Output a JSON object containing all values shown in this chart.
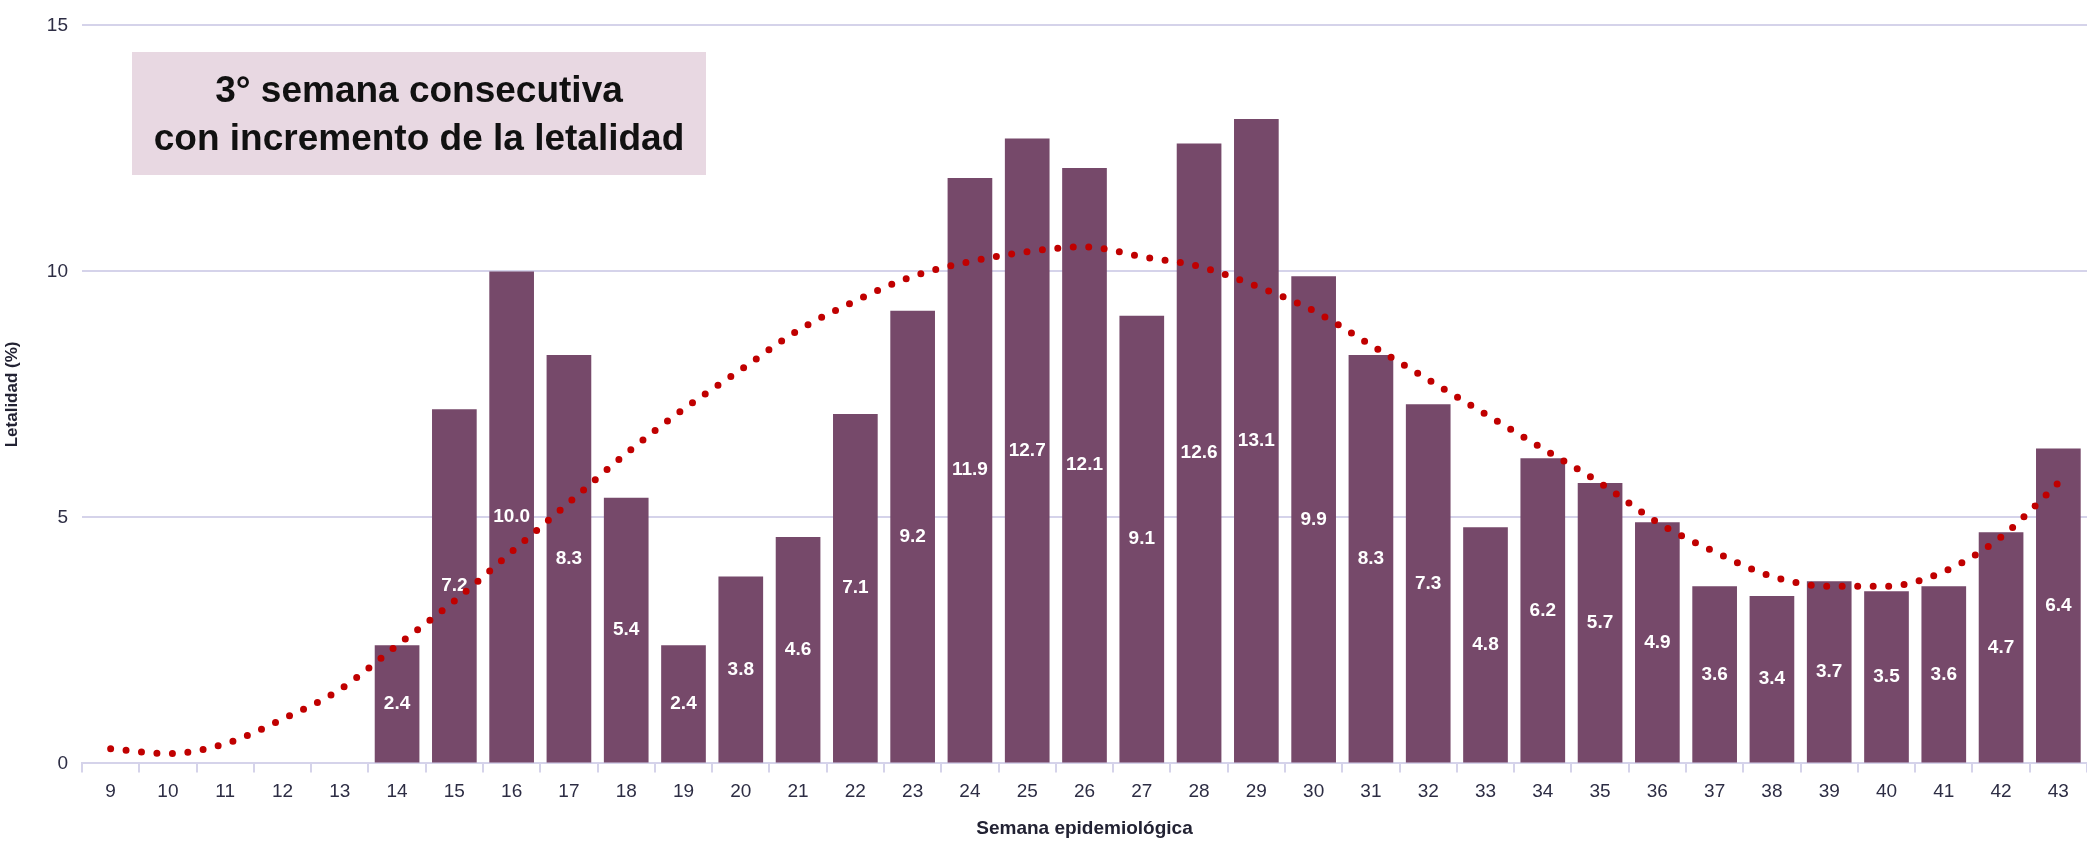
{
  "chart_data": {
    "type": "bar",
    "xlabel": "Semana epidemiológica",
    "ylabel": "Letalidad (%)",
    "annotations": [
      "3° semana consecutiva\ncon incremento de la letalidad"
    ],
    "categories": [
      "9",
      "10",
      "11",
      "12",
      "13",
      "14",
      "15",
      "16",
      "17",
      "18",
      "19",
      "20",
      "21",
      "22",
      "23",
      "24",
      "25",
      "26",
      "27",
      "28",
      "29",
      "30",
      "31",
      "32",
      "33",
      "34",
      "35",
      "36",
      "37",
      "38",
      "39",
      "40",
      "41",
      "42",
      "43"
    ],
    "series": [
      {
        "color": "#76496a",
        "values": [
          null,
          null,
          null,
          null,
          null,
          2.4,
          7.2,
          10.0,
          8.3,
          5.4,
          2.4,
          3.8,
          4.6,
          7.1,
          9.2,
          11.9,
          12.7,
          12.1,
          9.1,
          12.6,
          13.1,
          9.9,
          8.3,
          7.3,
          4.8,
          6.2,
          5.7,
          4.9,
          3.6,
          3.4,
          3.7,
          3.5,
          3.6,
          4.7,
          6.4
        ],
        "value_labels": [
          null,
          null,
          null,
          null,
          null,
          "2.4",
          "7.2",
          "10.0",
          "8.3",
          "5.4",
          "2.4",
          "3.8",
          "4.6",
          "7.1",
          "9.2",
          "11.9",
          "12.7",
          "12.1",
          "9.1",
          "12.6",
          "13.1",
          "9.9",
          "8.3",
          "7.3",
          "4.8",
          "6.2",
          "5.7",
          "4.9",
          "3.6",
          "3.4",
          "3.7",
          "3.5",
          "3.6",
          "4.7",
          "6.4"
        ]
      },
      {
        "type": "line",
        "color": "#c00000",
        "line_style": "dotted",
        "marker": "none",
        "values": [
          0.3,
          0.2,
          0.4,
          0.9,
          1.5,
          2.4,
          3.3,
          4.3,
          5.3,
          6.3,
          7.2,
          8.0,
          8.8,
          9.4,
          9.9,
          10.2,
          10.4,
          10.5,
          10.3,
          10.1,
          9.7,
          9.2,
          8.5,
          7.8,
          7.1,
          6.4,
          5.7,
          4.9,
          4.3,
          3.8,
          3.6,
          3.6,
          3.9,
          4.6,
          5.7
        ]
      }
    ],
    "ylim": [
      0,
      15
    ],
    "yticks": [
      0,
      5,
      10,
      15
    ],
    "grid": "y"
  }
}
